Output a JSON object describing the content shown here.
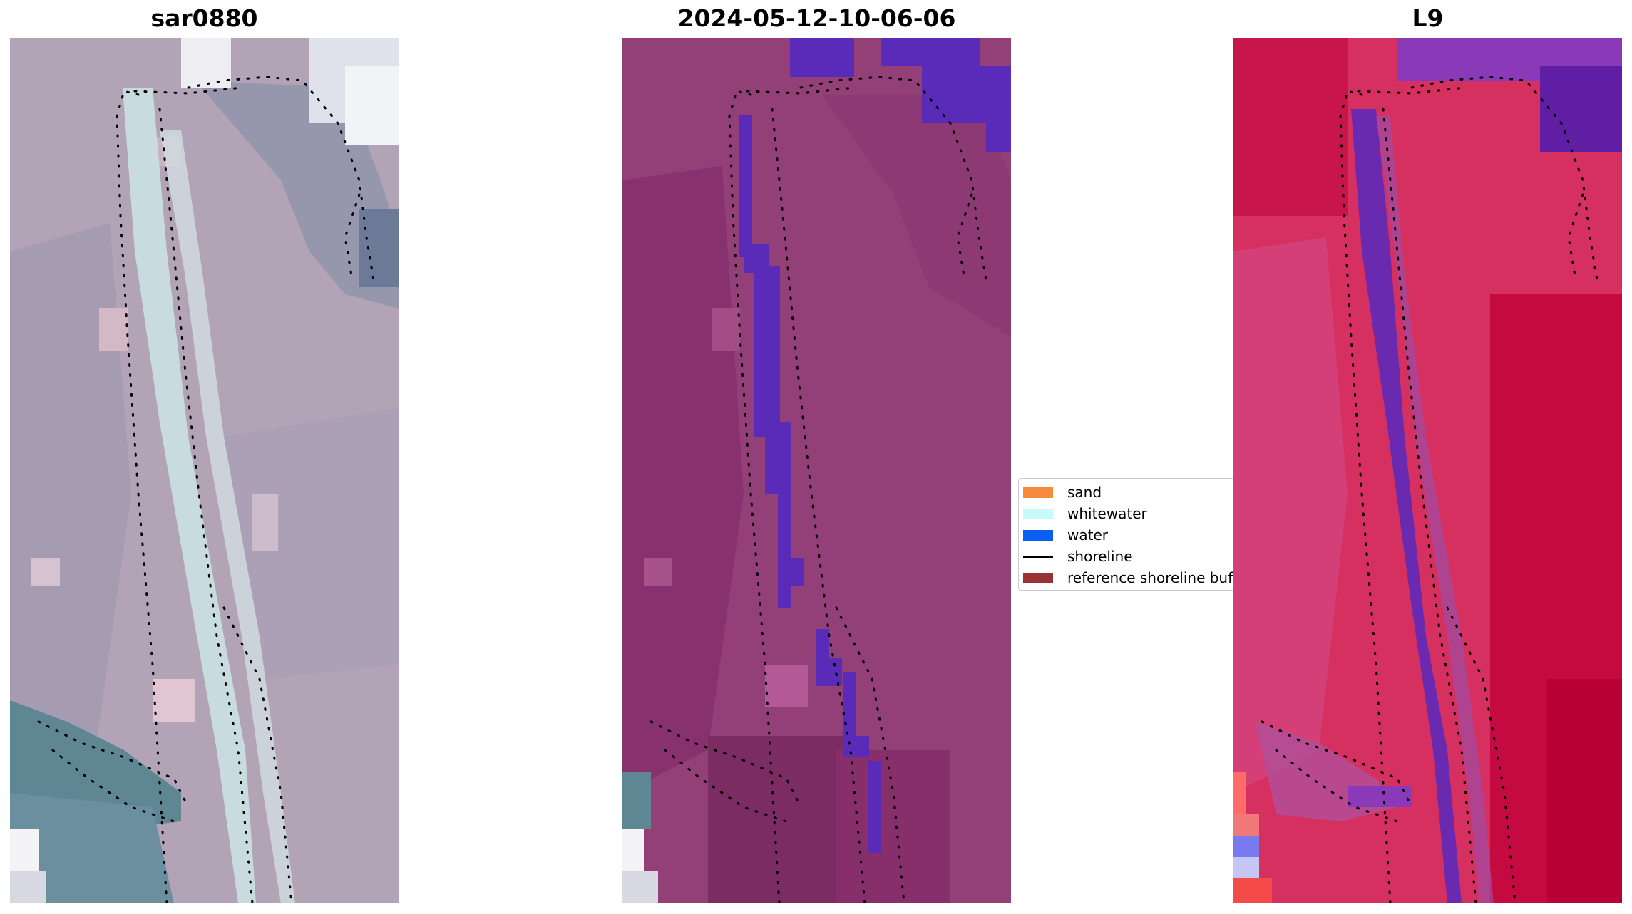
{
  "panels": [
    {
      "title": "sar0880"
    },
    {
      "title": "2024-05-12-10-06-06"
    },
    {
      "title": "L9"
    }
  ],
  "legend": {
    "items": [
      {
        "label": "sand",
        "kind": "patch",
        "color": "#f58b3c"
      },
      {
        "label": "whitewater",
        "kind": "patch",
        "color": "#c8fafa"
      },
      {
        "label": "water",
        "kind": "patch",
        "color": "#0a5ff2"
      },
      {
        "label": "shoreline",
        "kind": "line",
        "color": "#000000"
      },
      {
        "label": "reference shoreline buffer",
        "kind": "patch",
        "color": "#993333"
      }
    ]
  },
  "colors": {
    "rgb_ground": "#b3a3b6",
    "rgb_bluegray": "#7f8ea6",
    "rgb_channel": "#c8dce0",
    "rgb_water": "#5e8693",
    "class_base": "#933f78",
    "class_dark": "#7f2f68",
    "class_water": "#5a2ab8",
    "l9_base": "#d63060",
    "l9_deep": "#c0083a",
    "l9_purple": "#8a3ab8",
    "l9_channel": "#6a2ab0"
  }
}
